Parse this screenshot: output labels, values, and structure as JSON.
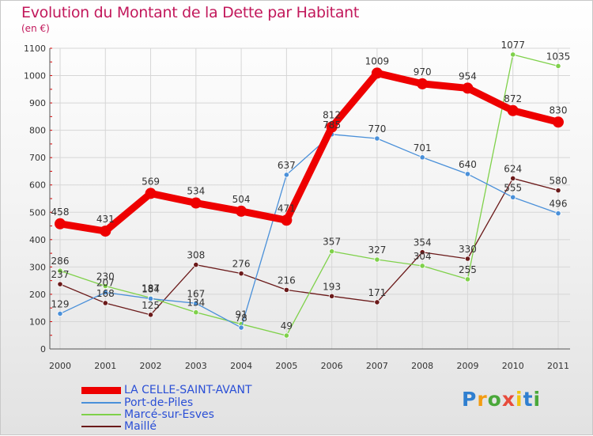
{
  "chart_data": {
    "type": "line",
    "title": "Evolution du Montant de la Dette par Habitant",
    "ylabel": "(en €)",
    "xlabel": "",
    "x": [
      "2000",
      "2001",
      "2002",
      "2003",
      "2004",
      "2005",
      "2006",
      "2007",
      "2008",
      "2009",
      "2010",
      "2011"
    ],
    "ylim": [
      0,
      1100
    ],
    "yticks": [
      0,
      100,
      200,
      300,
      400,
      500,
      600,
      700,
      800,
      900,
      1000,
      1100
    ],
    "grid": true,
    "legend_position": "bottom-left",
    "series": [
      {
        "name": "LA CELLE-SAINT-AVANT",
        "color": "#ee0000",
        "values": [
          458,
          431,
          569,
          534,
          504,
          471,
          812,
          1009,
          970,
          954,
          872,
          830
        ]
      },
      {
        "name": "Port-de-Piles",
        "color": "#4a90d9",
        "values": [
          129,
          207,
          184,
          167,
          78,
          637,
          785,
          770,
          701,
          640,
          555,
          496
        ]
      },
      {
        "name": "Marcé-sur-Esves",
        "color": "#7fd14a",
        "values": [
          286,
          230,
          187,
          134,
          91,
          49,
          357,
          327,
          304,
          255,
          1077,
          1035
        ]
      },
      {
        "name": "Maillé",
        "color": "#6b1a1a",
        "values": [
          237,
          168,
          125,
          308,
          276,
          216,
          193,
          171,
          354,
          330,
          624,
          580
        ]
      }
    ]
  },
  "logo": {
    "text": "Proxiti",
    "colors": [
      "#2f7fd0",
      "#f39c12",
      "#4aa83a",
      "#e74c3c",
      "#f1c40f",
      "#2f7fd0",
      "#4aa83a"
    ]
  }
}
